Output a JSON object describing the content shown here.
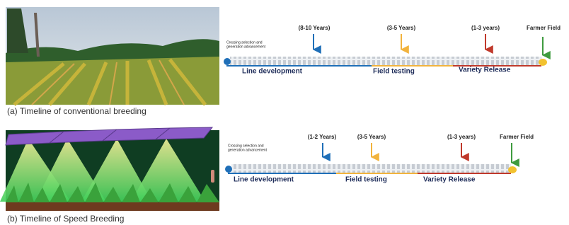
{
  "panels": [
    {
      "caption": "(a) Timeline of conventional breeding",
      "note": [
        "Crossing selection and",
        "generation advancement"
      ],
      "durations": [
        "(8-10 Years)",
        "(3-5 Years)",
        "(1-3 years)"
      ],
      "destination": "Farmer Field",
      "stages": [
        "Line development",
        "Field testing",
        "Variety Release"
      ]
    },
    {
      "caption": "(b) Timeline of Speed Breeding",
      "note": [
        "Crossing selection and",
        "generation advancement"
      ],
      "durations": [
        "(1-2 Years)",
        "(3-5 Years)",
        "(1-3 years)"
      ],
      "destination": "Farmer Field",
      "stages": [
        "Line development",
        "Field testing",
        "Variety Release"
      ]
    }
  ]
}
